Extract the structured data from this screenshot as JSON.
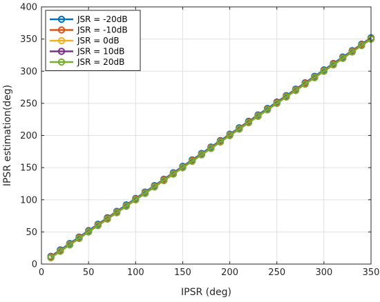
{
  "chart_data": {
    "type": "line",
    "title": "",
    "xlabel": "IPSR (deg)",
    "ylabel": "IPSR estimation(deg)",
    "xlim": [
      0,
      350
    ],
    "ylim": [
      0,
      400
    ],
    "xticks": [
      0,
      50,
      100,
      150,
      200,
      250,
      300,
      350
    ],
    "yticks": [
      0,
      50,
      100,
      150,
      200,
      250,
      300,
      350,
      400
    ],
    "grid": true,
    "legend_position": "top-left",
    "x": [
      10,
      20,
      30,
      40,
      50,
      60,
      70,
      80,
      90,
      100,
      110,
      120,
      130,
      140,
      150,
      160,
      170,
      180,
      190,
      200,
      210,
      220,
      230,
      240,
      250,
      260,
      270,
      280,
      290,
      300,
      310,
      320,
      330,
      340,
      350
    ],
    "series": [
      {
        "name": "JSR = -20dB",
        "color": "#0072BD",
        "marker": "circle",
        "values": [
          12,
          22,
          32,
          42,
          52,
          62,
          72,
          82,
          92,
          102,
          112,
          122,
          132,
          142,
          152,
          162,
          172,
          182,
          192,
          202,
          212,
          222,
          232,
          242,
          252,
          262,
          272,
          282,
          292,
          302,
          312,
          322,
          332,
          342,
          352
        ]
      },
      {
        "name": "JSR = -10dB",
        "color": "#D95319",
        "marker": "circle",
        "values": [
          11,
          21,
          31,
          41,
          51,
          61,
          71,
          81,
          91,
          101,
          111,
          121,
          131,
          141,
          151,
          161,
          171,
          181,
          191,
          201,
          211,
          221,
          231,
          241,
          251,
          261,
          271,
          281,
          291,
          301,
          311,
          321,
          331,
          341,
          351
        ]
      },
      {
        "name": "JSR = 0dB",
        "color": "#EDB120",
        "marker": "circle",
        "values": [
          10,
          20,
          30,
          40,
          50,
          60,
          70,
          80,
          90,
          100,
          110,
          120,
          130,
          140,
          150,
          160,
          170,
          180,
          190,
          200,
          210,
          220,
          230,
          240,
          250,
          260,
          270,
          280,
          290,
          300,
          310,
          320,
          330,
          340,
          350
        ]
      },
      {
        "name": "JSR = 10dB",
        "color": "#7E2F8E",
        "marker": "circle",
        "values": [
          10,
          20,
          30,
          40,
          50,
          60,
          70,
          80,
          90,
          100,
          110,
          120,
          130,
          140,
          150,
          160,
          170,
          180,
          190,
          200,
          210,
          220,
          230,
          240,
          250,
          260,
          270,
          280,
          290,
          300,
          310,
          320,
          330,
          340,
          350
        ]
      },
      {
        "name": "JSR = 20dB",
        "color": "#77AC30",
        "marker": "circle",
        "values": [
          10,
          20,
          30,
          40,
          50,
          60,
          70,
          80,
          90,
          100,
          110,
          120,
          130,
          140,
          150,
          160,
          170,
          180,
          190,
          200,
          210,
          220,
          230,
          240,
          250,
          260,
          270,
          280,
          290,
          300,
          310,
          320,
          330,
          340,
          350
        ]
      }
    ]
  }
}
